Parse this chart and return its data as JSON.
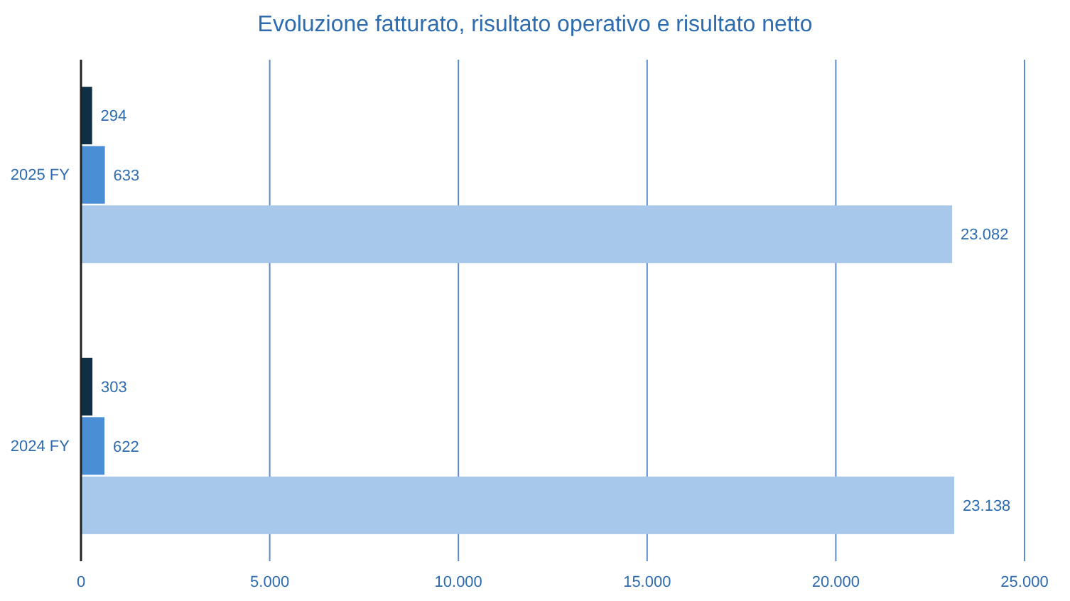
{
  "chart_data": {
    "type": "bar",
    "orientation": "horizontal",
    "title": "Evoluzione fatturato, risultato operativo e risultato netto",
    "categories": [
      "2025 FY",
      "2024 FY"
    ],
    "series": [
      {
        "color": "#0e2f44",
        "values": [
          294,
          303
        ],
        "value_labels": [
          "294",
          "303"
        ]
      },
      {
        "color": "#4a8fd6",
        "values": [
          633,
          622
        ],
        "value_labels": [
          "633",
          "622"
        ]
      },
      {
        "color": "#a8c8eb",
        "values": [
          23082,
          23138
        ],
        "value_labels": [
          "23.082",
          "23.138"
        ]
      }
    ],
    "xlim": [
      0,
      25000
    ],
    "xticks": [
      0,
      {
        "value": 5000,
        "label": "5.000"
      },
      {
        "value": 10000,
        "label": "10.000"
      },
      {
        "value": 15000,
        "label": "15.000"
      },
      {
        "value": 20000,
        "label": "20.000"
      },
      {
        "value": 25000,
        "label": "25.000"
      }
    ],
    "grid": "x"
  }
}
